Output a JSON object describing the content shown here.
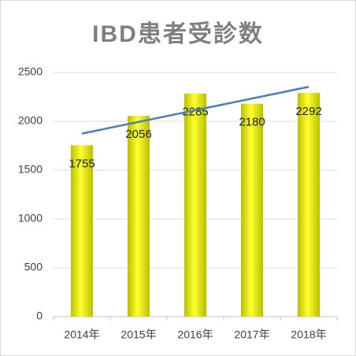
{
  "chart_data": {
    "type": "bar",
    "title": "IBD患者受診数",
    "categories": [
      "2014年",
      "2015年",
      "2016年",
      "2017年",
      "2018年"
    ],
    "values": [
      1755,
      2056,
      2285,
      2180,
      2292
    ],
    "color": "#eef200",
    "trendline": {
      "values": [
        1874,
        2353
      ],
      "color": "#4a7ebb"
    },
    "ylim": [
      0,
      2500
    ],
    "yticks": [
      0,
      500,
      1000,
      1500,
      2000,
      2500
    ],
    "grid": true
  }
}
